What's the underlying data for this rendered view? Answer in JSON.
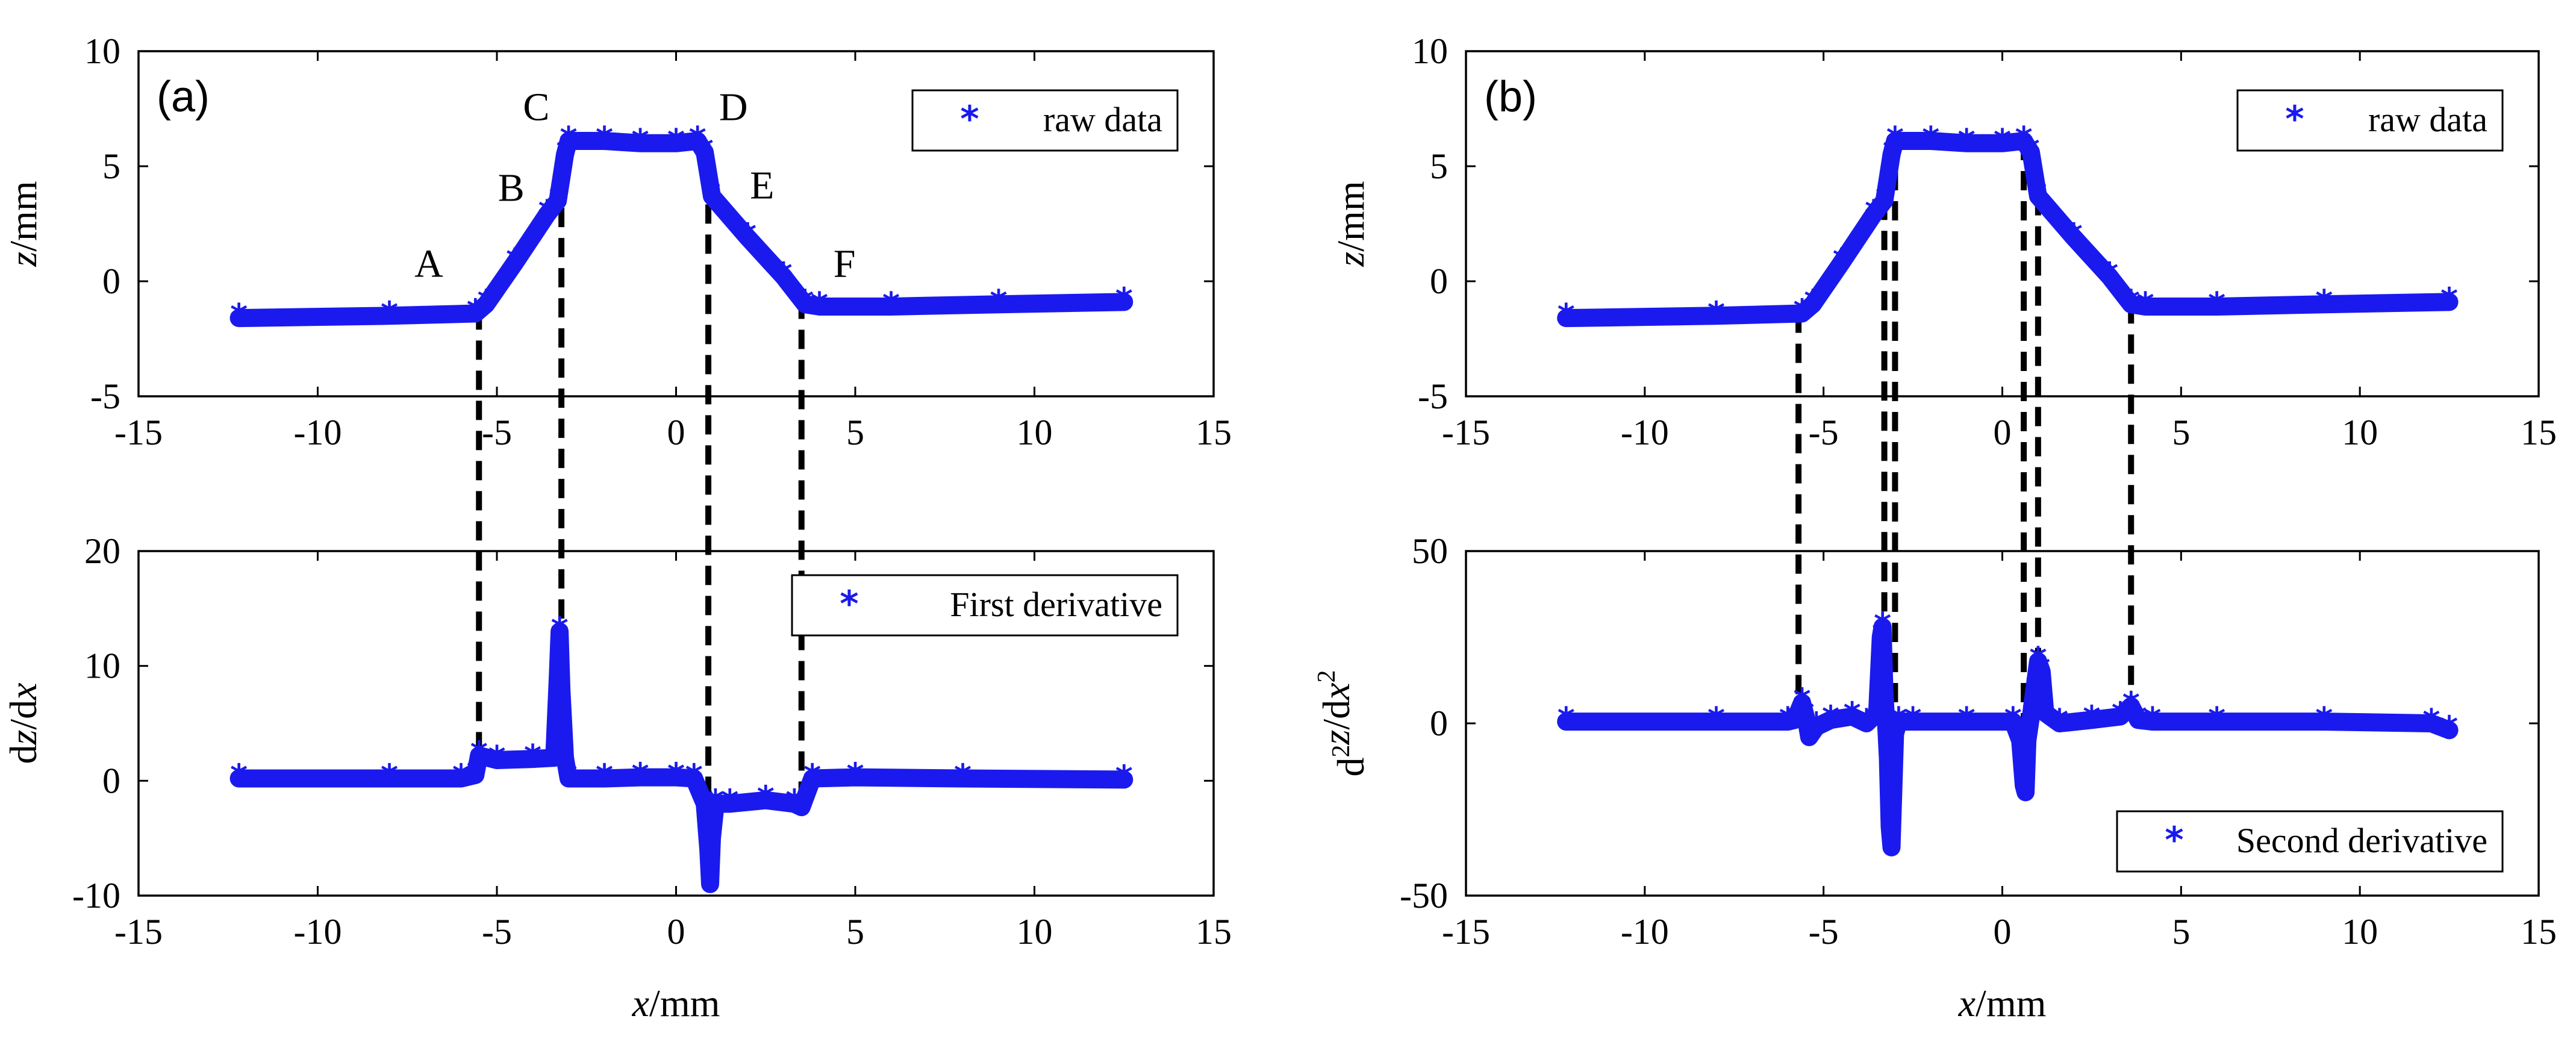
{
  "chart_data": [
    {
      "id": "a-top",
      "panel_label": "(a)",
      "type": "scatter",
      "marker": "*",
      "series_color": "#1a1aee",
      "legend": "raw data",
      "legend_position": "top-right",
      "xlabel_italic": "x",
      "xlabel_unit": "/mm",
      "ylabel_italic": "z",
      "ylabel_unit": "/mm",
      "xlim": [
        -15,
        15
      ],
      "ylim": [
        -5,
        10
      ],
      "xticks": [
        "-15",
        "-10",
        "-5",
        "0",
        "5",
        "10",
        "15"
      ],
      "yticks": [
        "-5",
        "0",
        "5",
        "10"
      ],
      "xtick_values": [
        -15,
        -10,
        -5,
        0,
        5,
        10,
        15
      ],
      "ytick_values": [
        -5,
        0,
        5,
        10
      ],
      "x": [
        -12.2,
        -8,
        -5.6,
        -5.3,
        -4.5,
        -3.6,
        -3.3,
        -3.1,
        -3.0,
        -2,
        -1,
        0,
        0.6,
        0.8,
        1.0,
        2.0,
        3.0,
        3.6,
        4,
        6,
        9,
        12.5
      ],
      "y": [
        -1.6,
        -1.5,
        -1.4,
        -1.0,
        0.8,
        2.9,
        3.5,
        5.5,
        6.1,
        6.1,
        6.0,
        6.0,
        6.1,
        5.6,
        3.7,
        1.9,
        0.2,
        -1.0,
        -1.1,
        -1.1,
        -1.0,
        -0.9
      ],
      "annotations": [
        {
          "text": "A",
          "x": -6.9,
          "y": 0.2
        },
        {
          "text": "B",
          "x": -4.6,
          "y": 3.5
        },
        {
          "text": "C",
          "x": -3.9,
          "y": 7.0
        },
        {
          "text": "D",
          "x": 1.6,
          "y": 7.0
        },
        {
          "text": "E",
          "x": 2.4,
          "y": 3.6
        },
        {
          "text": "F",
          "x": 4.7,
          "y": 0.2
        }
      ]
    },
    {
      "id": "a-bottom",
      "type": "scatter",
      "marker": "*",
      "series_color": "#1a1aee",
      "legend": "First derivative",
      "legend_position": "top-right",
      "xlabel_italic": "x",
      "xlabel_unit": "/mm",
      "ylabel_prefix": "d",
      "ylabel_italic": "z",
      "ylabel_unit": "/d",
      "ylabel_italic2": "x",
      "xlim": [
        -15,
        15
      ],
      "ylim": [
        -10,
        20
      ],
      "xticks": [
        "-15",
        "-10",
        "-5",
        "0",
        "5",
        "10",
        "15"
      ],
      "yticks": [
        "-10",
        "0",
        "10",
        "20"
      ],
      "xtick_values": [
        -15,
        -10,
        -5,
        0,
        5,
        10,
        15
      ],
      "ytick_values": [
        -10,
        0,
        10,
        20
      ],
      "x": [
        -12.2,
        -8,
        -6,
        -5.6,
        -5.5,
        -5,
        -4,
        -3.4,
        -3.3,
        -3.25,
        -3.2,
        -3.1,
        -3.0,
        -2,
        -1,
        0,
        0.5,
        0.8,
        0.9,
        0.95,
        1.0,
        1.1,
        1.5,
        2.5,
        3.3,
        3.5,
        3.8,
        5,
        8,
        12.5
      ],
      "y": [
        0.2,
        0.2,
        0.2,
        0.5,
        2.2,
        1.8,
        1.9,
        2.0,
        9.0,
        13.0,
        8.0,
        2.0,
        0.2,
        0.2,
        0.3,
        0.3,
        0.2,
        -2.0,
        -6.0,
        -9.0,
        -5.0,
        -2.0,
        -2.0,
        -1.7,
        -2.0,
        -2.3,
        0.2,
        0.3,
        0.2,
        0.1
      ]
    },
    {
      "id": "b-top",
      "panel_label": "(b)",
      "type": "scatter",
      "marker": "*",
      "series_color": "#1a1aee",
      "legend": "raw data",
      "legend_position": "top-right",
      "xlabel_italic": "x",
      "xlabel_unit": "/mm",
      "ylabel_italic": "z",
      "ylabel_unit": "/mm",
      "xlim": [
        -15,
        15
      ],
      "ylim": [
        -5,
        10
      ],
      "xticks": [
        "-15",
        "-10",
        "-5",
        "0",
        "5",
        "10",
        "15"
      ],
      "yticks": [
        "-5",
        "0",
        "5",
        "10"
      ],
      "xtick_values": [
        -15,
        -10,
        -5,
        0,
        5,
        10,
        15
      ],
      "ytick_values": [
        -5,
        0,
        5,
        10
      ],
      "x": [
        -12.2,
        -8,
        -5.6,
        -5.3,
        -4.5,
        -3.6,
        -3.3,
        -3.1,
        -3.0,
        -2,
        -1,
        0,
        0.6,
        0.8,
        1.0,
        2.0,
        3.0,
        3.6,
        4,
        6,
        9,
        12.5
      ],
      "y": [
        -1.6,
        -1.5,
        -1.4,
        -1.0,
        0.8,
        2.9,
        3.5,
        5.5,
        6.1,
        6.1,
        6.0,
        6.0,
        6.1,
        5.6,
        3.7,
        1.9,
        0.2,
        -1.0,
        -1.1,
        -1.1,
        -1.0,
        -0.9
      ]
    },
    {
      "id": "b-bottom",
      "type": "scatter",
      "marker": "*",
      "series_color": "#1a1aee",
      "legend": "Second derivative",
      "legend_position": "bottom-right",
      "xlabel_italic": "x",
      "xlabel_unit": "/mm",
      "ylabel_prefix": "d",
      "ylabel_prefix_sup": "2",
      "ylabel_italic": "z",
      "ylabel_unit": "/d",
      "ylabel_italic2": "x",
      "ylabel_sup": "2",
      "xlim": [
        -15,
        15
      ],
      "ylim": [
        -50,
        50
      ],
      "xticks": [
        "-15",
        "-10",
        "-5",
        "0",
        "5",
        "10",
        "15"
      ],
      "yticks": [
        "-50",
        "0",
        "50"
      ],
      "xtick_values": [
        -15,
        -10,
        -5,
        0,
        5,
        10,
        15
      ],
      "ytick_values": [
        -50,
        0,
        50
      ],
      "x": [
        -12.2,
        -8,
        -6,
        -5.8,
        -5.6,
        -5.5,
        -5.4,
        -5.2,
        -4.8,
        -4.2,
        -3.8,
        -3.5,
        -3.4,
        -3.35,
        -3.3,
        -3.2,
        -3.15,
        -3.1,
        -3.05,
        -3.0,
        -2.9,
        -2.5,
        -1,
        0.3,
        0.5,
        0.6,
        0.65,
        0.7,
        0.8,
        0.9,
        1.0,
        1.1,
        1.2,
        1.6,
        2.5,
        3.3,
        3.6,
        3.8,
        4.2,
        6,
        9,
        12,
        12.5
      ],
      "y": [
        0.5,
        0.5,
        0.5,
        1.0,
        6.0,
        2.0,
        -4.0,
        -1.0,
        1.0,
        2.0,
        0.0,
        3.0,
        25.0,
        28.0,
        10.0,
        -10.0,
        -30.0,
        -36.0,
        -20.0,
        -3.0,
        0.5,
        0.5,
        0.5,
        0.5,
        -5.0,
        -18.0,
        -20.0,
        -5.0,
        2.0,
        10.0,
        18.0,
        15.0,
        3.0,
        0.0,
        1.0,
        2.0,
        5.0,
        1.0,
        0.5,
        0.5,
        0.5,
        0.0,
        -2.0
      ]
    }
  ],
  "guide_lines": {
    "a": [
      -5.5,
      -3.2,
      0.9,
      3.5
    ],
    "b": [
      -5.7,
      -3.3,
      -3.0,
      0.6,
      1.0,
      3.6
    ]
  }
}
